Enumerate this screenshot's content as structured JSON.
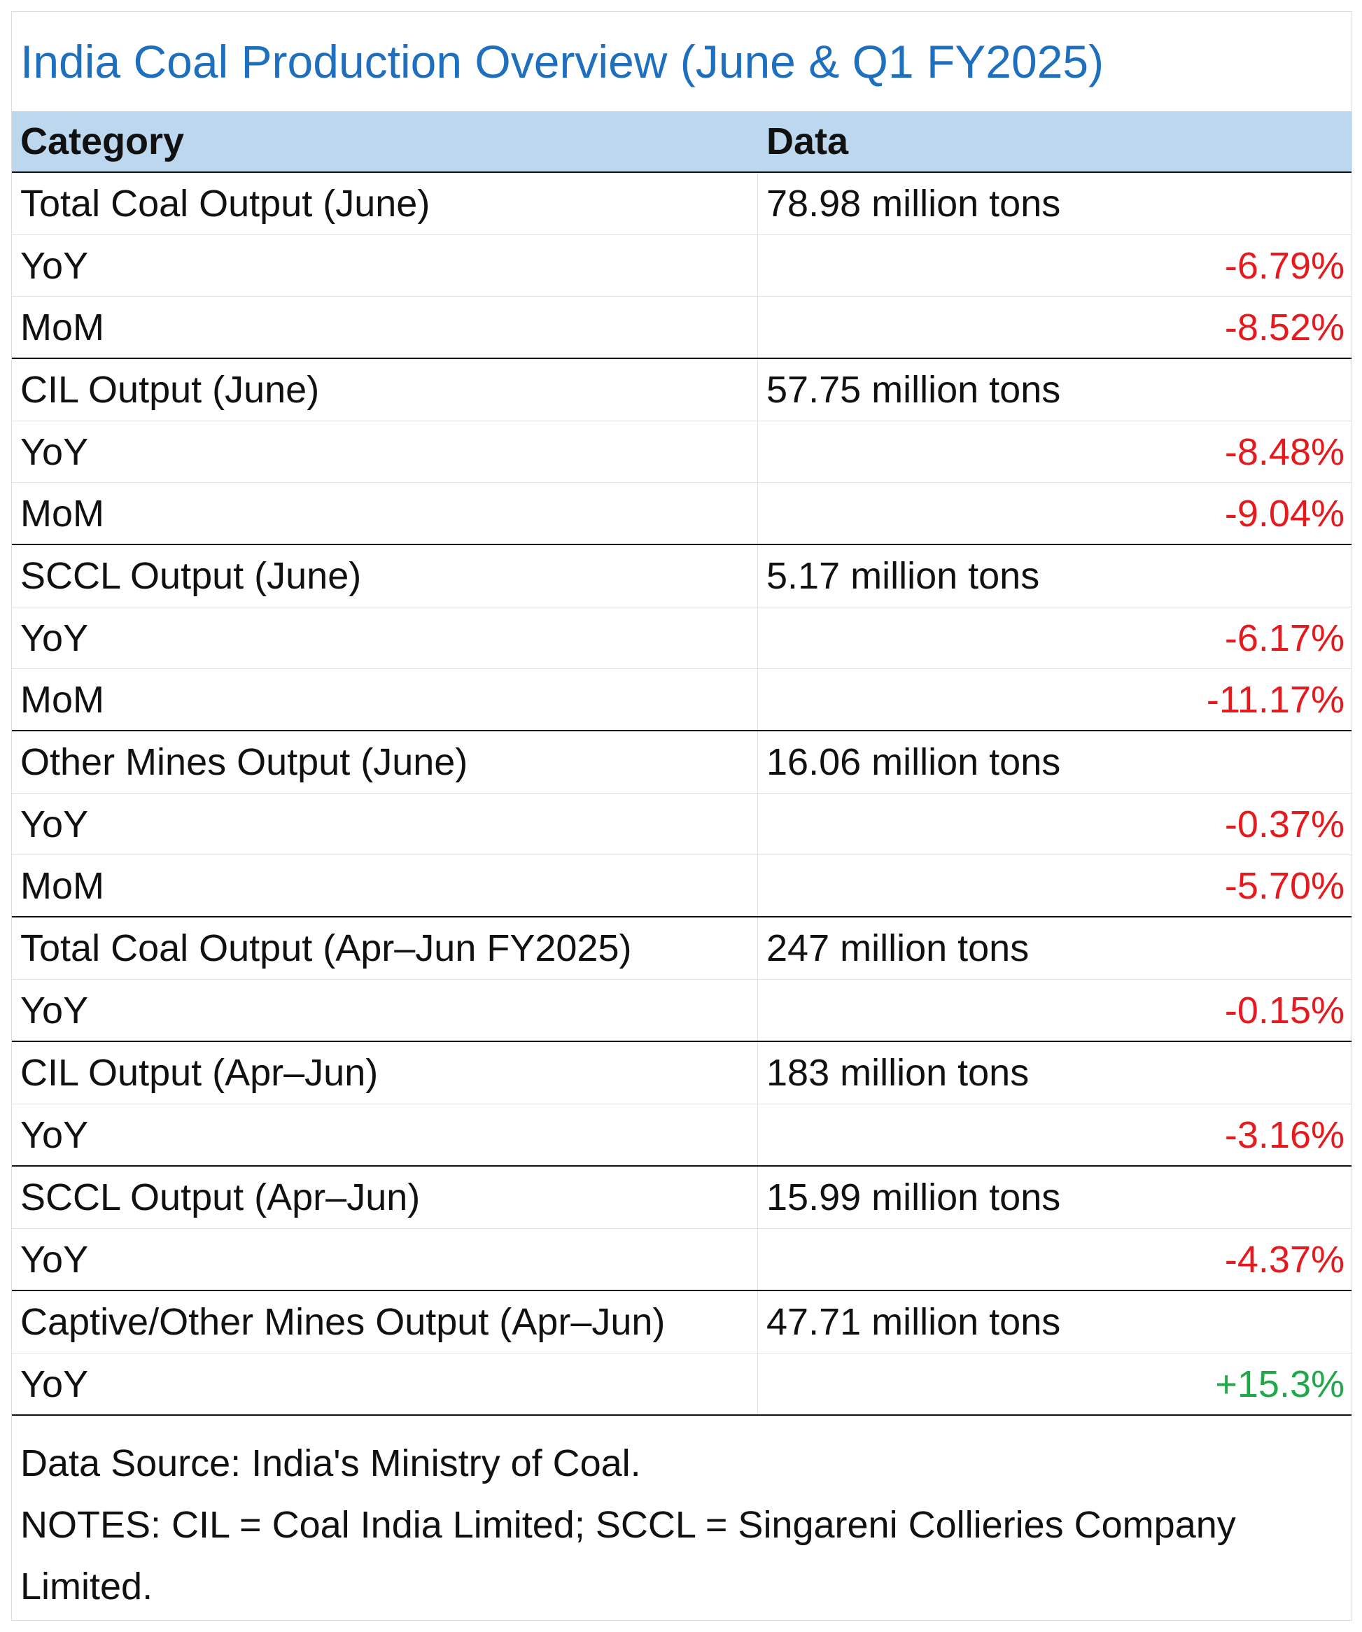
{
  "title": "India Coal Production Overview (June & Q1 FY2025)",
  "columns": {
    "category": "Category",
    "data": "Data"
  },
  "groups": [
    {
      "label": "Total Coal Output (June)",
      "value": "78.98 million tons",
      "rows": [
        {
          "label": "YoY",
          "value": "-6.79%",
          "sign": "neg"
        },
        {
          "label": "MoM",
          "value": "-8.52%",
          "sign": "neg"
        }
      ]
    },
    {
      "label": "CIL Output (June)",
      "value": "57.75 million tons",
      "rows": [
        {
          "label": "YoY",
          "value": "-8.48%",
          "sign": "neg"
        },
        {
          "label": "MoM",
          "value": "-9.04%",
          "sign": "neg"
        }
      ]
    },
    {
      "label": "SCCL Output (June)",
      "value": "5.17 million tons",
      "rows": [
        {
          "label": "YoY",
          "value": "-6.17%",
          "sign": "neg"
        },
        {
          "label": "MoM",
          "value": "-11.17%",
          "sign": "neg"
        }
      ]
    },
    {
      "label": "Other Mines Output (June)",
      "value": "16.06 million tons",
      "rows": [
        {
          "label": "YoY",
          "value": "-0.37%",
          "sign": "neg"
        },
        {
          "label": "MoM",
          "value": "-5.70%",
          "sign": "neg"
        }
      ]
    },
    {
      "label": "Total Coal Output (Apr–Jun FY2025)",
      "value": "247 million tons",
      "rows": [
        {
          "label": "YoY",
          "value": "-0.15%",
          "sign": "neg"
        }
      ]
    },
    {
      "label": "CIL Output (Apr–Jun)",
      "value": "183 million tons",
      "rows": [
        {
          "label": "YoY",
          "value": "-3.16%",
          "sign": "neg"
        }
      ]
    },
    {
      "label": "SCCL Output (Apr–Jun)",
      "value": "15.99 million tons",
      "rows": [
        {
          "label": "YoY",
          "value": "-4.37%",
          "sign": "neg"
        }
      ]
    },
    {
      "label": "Captive/Other Mines Output (Apr–Jun)",
      "value": "47.71 million tons",
      "rows": [
        {
          "label": "YoY",
          "value": "+15.3%",
          "sign": "pos"
        }
      ]
    }
  ],
  "footer": {
    "source": "Data Source: India's Ministry of Coal.",
    "notes": "NOTES: CIL = Coal India Limited; SCCL = Singareni Collieries Company Limited."
  },
  "colors": {
    "title": "#1f6fbf",
    "header_bg": "#bdd7ee",
    "negative": "#e8191d",
    "positive": "#20a84a"
  }
}
